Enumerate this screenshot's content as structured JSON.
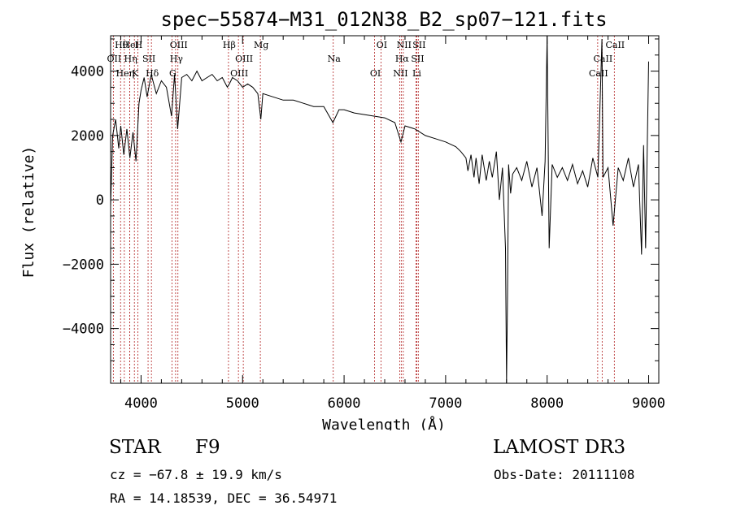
{
  "chart_data": {
    "type": "line",
    "title": "spec−55874−M31_012N38_B2_sp07−121.fits",
    "xlabel": "Wavelength (Å)",
    "ylabel": "Flux (relative)",
    "xlim": [
      3700,
      9100
    ],
    "ylim": [
      -5700,
      5100
    ],
    "xticks": [
      4000,
      5000,
      6000,
      7000,
      8000,
      9000
    ],
    "xtick_labels": [
      "4000",
      "5000",
      "6000",
      "7000",
      "8000",
      "9000"
    ],
    "yticks": [
      -4000,
      -2000,
      0,
      2000,
      4000
    ],
    "ytick_labels": [
      "−4000",
      "−2000",
      "0",
      "2000",
      "4000"
    ],
    "series": [
      {
        "name": "spectrum",
        "x": [
          3700,
          3720,
          3750,
          3780,
          3800,
          3830,
          3860,
          3890,
          3920,
          3950,
          3980,
          4000,
          4030,
          4060,
          4100,
          4150,
          4200,
          4250,
          4300,
          4330,
          4360,
          4400,
          4450,
          4500,
          4550,
          4600,
          4650,
          4700,
          4750,
          4800,
          4850,
          4870,
          4900,
          4950,
          5000,
          5050,
          5100,
          5150,
          5180,
          5200,
          5300,
          5400,
          5500,
          5600,
          5700,
          5800,
          5890,
          5950,
          6000,
          6100,
          6200,
          6300,
          6400,
          6500,
          6560,
          6600,
          6700,
          6800,
          6900,
          7000,
          7100,
          7150,
          7200,
          7220,
          7250,
          7280,
          7300,
          7330,
          7360,
          7400,
          7430,
          7460,
          7500,
          7530,
          7560,
          7590,
          7600,
          7610,
          7620,
          7640,
          7660,
          7700,
          7750,
          7800,
          7850,
          7900,
          7950,
          7980,
          8000,
          8020,
          8050,
          8100,
          8150,
          8200,
          8250,
          8300,
          8350,
          8400,
          8450,
          8500,
          8540,
          8550,
          8600,
          8650,
          8700,
          8750,
          8800,
          8850,
          8900,
          8930,
          8950,
          8970,
          9000
        ],
        "y": [
          -200,
          2000,
          2500,
          1600,
          2300,
          1400,
          2200,
          1300,
          2100,
          1200,
          3000,
          3400,
          3800,
          3200,
          3900,
          3300,
          3700,
          3500,
          2600,
          3900,
          2200,
          3800,
          3900,
          3700,
          4000,
          3700,
          3800,
          3900,
          3700,
          3800,
          3500,
          3600,
          3800,
          3700,
          3500,
          3600,
          3500,
          3300,
          2500,
          3300,
          3200,
          3100,
          3100,
          3000,
          2900,
          2900,
          2400,
          2800,
          2800,
          2700,
          2650,
          2600,
          2550,
          2400,
          1800,
          2300,
          2200,
          2000,
          1900,
          1800,
          1650,
          1500,
          1300,
          900,
          1400,
          700,
          1300,
          500,
          1400,
          600,
          1200,
          700,
          1500,
          0,
          1000,
          -1500,
          -5700,
          -3000,
          1100,
          200,
          800,
          1000,
          600,
          1200,
          400,
          1000,
          -500,
          1200,
          5100,
          -1500,
          1100,
          700,
          1000,
          600,
          1100,
          500,
          900,
          400,
          1300,
          700,
          5000,
          700,
          1000,
          -800,
          1000,
          600,
          1300,
          400,
          1100,
          -1700,
          1700,
          -1500,
          4300
        ]
      }
    ],
    "lines": [
      {
        "label": "Hθ",
        "wavelength": 3798
      },
      {
        "label": "OII",
        "wavelength": 3727
      },
      {
        "label": "Heη",
        "wavelength": 3835
      },
      {
        "label": "HeI",
        "wavelength": 3889
      },
      {
        "label": "Hη",
        "wavelength": 3889
      },
      {
        "label": "K",
        "wavelength": 3934
      },
      {
        "label": "H",
        "wavelength": 3968
      },
      {
        "label": "SII",
        "wavelength": 4069
      },
      {
        "label": "Hδ",
        "wavelength": 4102
      },
      {
        "label": "OIII",
        "wavelength": 4363
      },
      {
        "label": "Hγ",
        "wavelength": 4340
      },
      {
        "label": "G",
        "wavelength": 4304
      },
      {
        "label": "Hβ",
        "wavelength": 4861
      },
      {
        "label": "OIII",
        "wavelength": 5007
      },
      {
        "label": "OIII",
        "wavelength": 4959
      },
      {
        "label": "Mg",
        "wavelength": 5175
      },
      {
        "label": "Na",
        "wavelength": 5893
      },
      {
        "label": "OI",
        "wavelength": 6300
      },
      {
        "label": "OI",
        "wavelength": 6363
      },
      {
        "label": "Hα",
        "wavelength": 6563
      },
      {
        "label": "NII",
        "wavelength": 6548
      },
      {
        "label": "NII",
        "wavelength": 6583
      },
      {
        "label": "SII",
        "wavelength": 6716
      },
      {
        "label": "Li",
        "wavelength": 6708
      },
      {
        "label": "SII",
        "wavelength": 6731
      },
      {
        "label": "CaII",
        "wavelength": 8542
      },
      {
        "label": "CaII",
        "wavelength": 8498
      },
      {
        "label": "CaII",
        "wavelength": 8662
      }
    ]
  },
  "info": {
    "class": "STAR",
    "subclass": "F9",
    "survey": "LAMOST DR3",
    "velocity": "cz = −67.8 ± 19.9 km/s",
    "obs_date": "Obs-Date: 20111108",
    "coords": "RA =  14.18539, DEC =  36.54971"
  }
}
